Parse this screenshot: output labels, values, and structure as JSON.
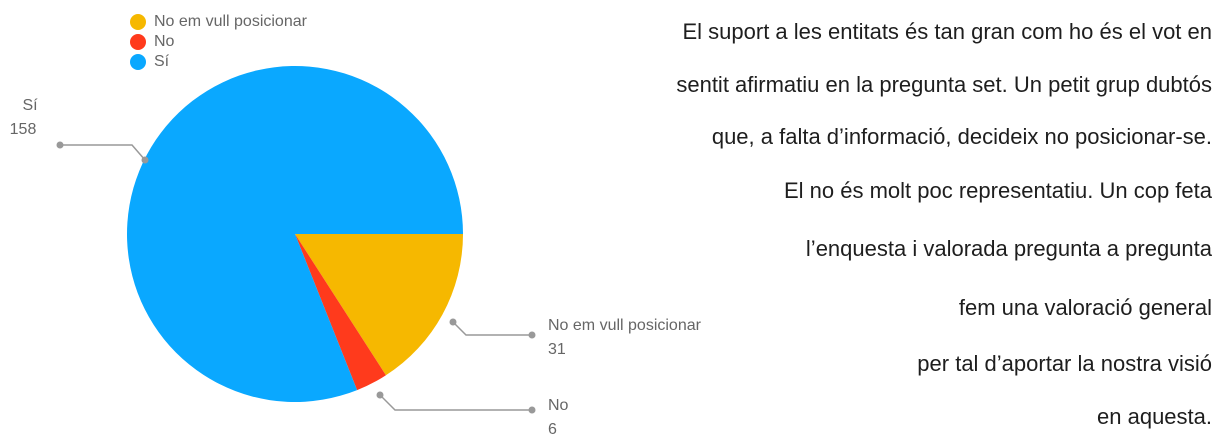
{
  "chart_data": {
    "type": "pie",
    "categories": [
      "No em vull posicionar",
      "No",
      "Sí"
    ],
    "values": [
      31,
      6,
      158
    ],
    "colors": [
      "#f6b800",
      "#ff3a1c",
      "#0aa8ff"
    ],
    "legend": "top-left"
  },
  "text": {
    "lines": [
      "El suport a les entitats és tan gran com ho és el vot en",
      "sentit afirmatiu en la pregunta set. Un petit grup dubtós",
      "que, a falta d’informació, decideix no posicionar-se.",
      "El no és molt poc representatiu. Un cop feta",
      "l’enquesta i valorada pregunta a pregunta",
      "fem una valoració general",
      "per tal d’aportar la nostra visió",
      "en aquesta."
    ]
  }
}
